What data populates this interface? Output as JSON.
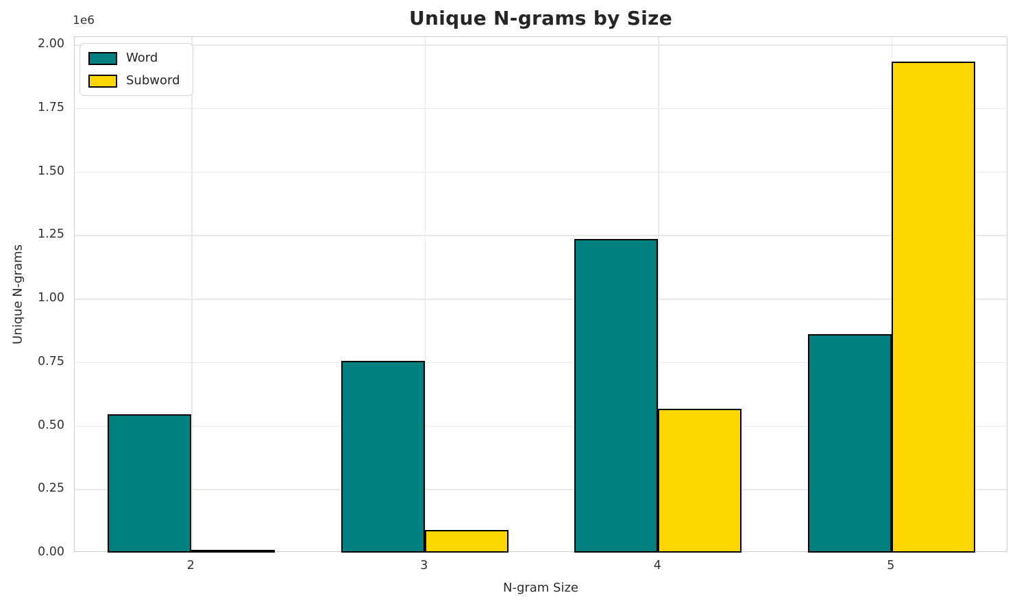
{
  "chart_data": {
    "type": "bar",
    "title": "Unique N-grams by Size",
    "xlabel": "N-gram Size",
    "ylabel": "Unique N-grams",
    "y_offset_label": "1e6",
    "categories": [
      "2",
      "3",
      "4",
      "5"
    ],
    "series": [
      {
        "name": "Word",
        "color": "#008080",
        "values": [
          545000,
          755000,
          1235000,
          860000
        ]
      },
      {
        "name": "Subword",
        "color": "#FFD700",
        "values": [
          10000,
          90000,
          567000,
          1933000
        ]
      }
    ],
    "ylim": [
      0,
      2030000
    ],
    "yticks": [
      0,
      250000,
      500000,
      750000,
      1000000,
      1250000,
      1500000,
      1750000,
      2000000
    ],
    "ytick_labels": [
      "0.00",
      "0.25",
      "0.50",
      "0.75",
      "1.00",
      "1.25",
      "1.50",
      "1.75",
      "2.00"
    ],
    "grid": true,
    "legend_position": "upper left",
    "bar_edge_color": "#000000",
    "grid_color": "#e8e8e8",
    "spine_color": "#cccccc",
    "text_color": "#262626"
  }
}
